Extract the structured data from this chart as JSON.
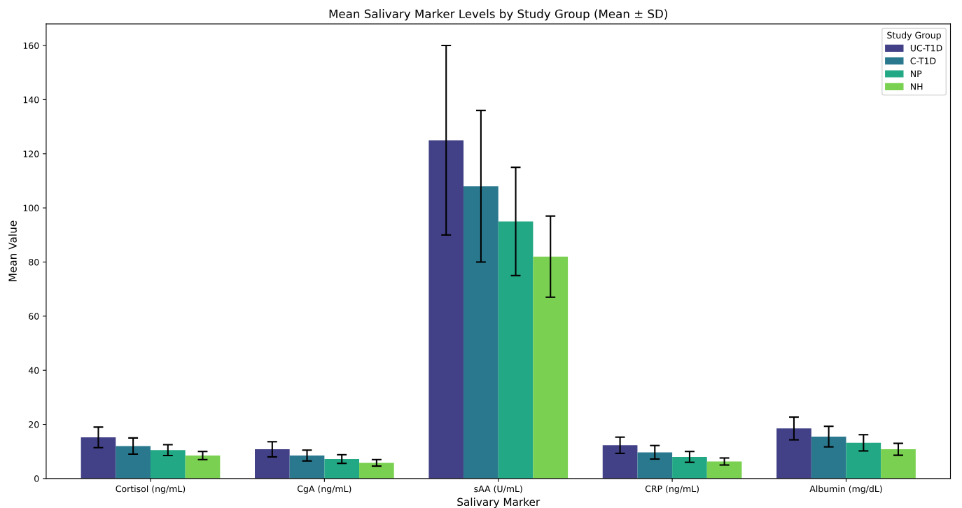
{
  "chart_data": {
    "type": "bar",
    "title": "Mean Salivary Marker Levels by Study Group (Mean ± SD)",
    "xlabel": "Salivary Marker",
    "ylabel": "Mean Value",
    "legend_title": "Study Group",
    "categories": [
      "Cortisol (ng/mL)",
      "CgA (ng/mL)",
      "sAA (U/mL)",
      "CRP (ng/mL)",
      "Albumin (mg/dL)"
    ],
    "series": [
      {
        "name": "UC-T1D",
        "color": "#424086",
        "values": [
          15.2,
          10.8,
          125,
          12.3,
          18.5
        ],
        "errors": [
          3.8,
          2.8,
          35,
          3,
          4.2
        ]
      },
      {
        "name": "C-T1D",
        "color": "#2a788e",
        "values": [
          12,
          8.5,
          108,
          9.7,
          15.5
        ],
        "errors": [
          3,
          2,
          28,
          2.5,
          3.8
        ]
      },
      {
        "name": "NP",
        "color": "#22a884",
        "values": [
          10.5,
          7.2,
          95,
          8,
          13.2
        ],
        "errors": [
          2,
          1.6,
          20,
          2,
          3
        ]
      },
      {
        "name": "NH",
        "color": "#7ad151",
        "values": [
          8.5,
          5.8,
          82,
          6.3,
          10.8
        ],
        "errors": [
          1.5,
          1.2,
          15,
          1.3,
          2.2
        ]
      }
    ],
    "ylim": [
      0,
      168
    ],
    "yticks": [
      0,
      20,
      40,
      60,
      80,
      100,
      120,
      140,
      160
    ],
    "legend": "top right",
    "grid": false
  }
}
